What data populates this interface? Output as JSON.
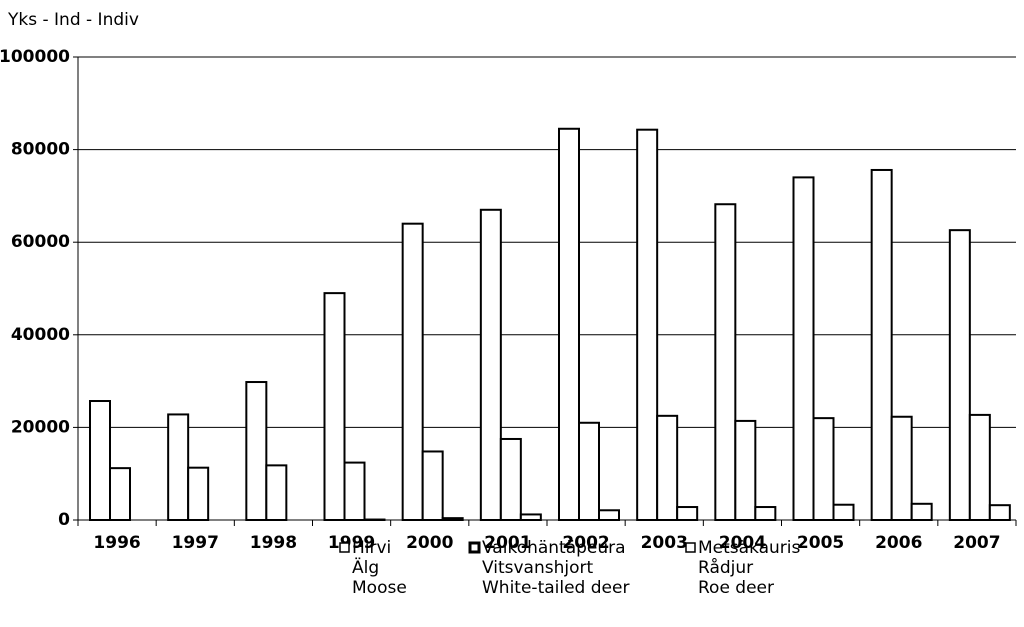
{
  "chart_data": {
    "type": "bar",
    "axis_label": "Yks - Ind - Indiv",
    "categories": [
      "1996",
      "1997",
      "1998",
      "1999",
      "2000",
      "2001",
      "2002",
      "2003",
      "2004",
      "2005",
      "2006",
      "2007"
    ],
    "series": [
      {
        "name": [
          "Hirvi",
          "Älg",
          "Moose"
        ],
        "color": "#ffffff",
        "values": [
          25700,
          22800,
          29800,
          49000,
          64000,
          67000,
          84500,
          84300,
          68200,
          74000,
          75600,
          62600
        ]
      },
      {
        "name": [
          "Valkohäntäpeura",
          "Vitsvanshjort",
          "White-tailed deer"
        ],
        "color": "#ffffff",
        "values": [
          11200,
          11300,
          11800,
          12400,
          14800,
          17500,
          21000,
          22500,
          21400,
          22000,
          22300,
          22700
        ]
      },
      {
        "name": [
          "Metsäkauris",
          "Rådjur",
          "Roe deer"
        ],
        "color": "#ffffff",
        "values": [
          0,
          0,
          0,
          100,
          400,
          1200,
          2100,
          2800,
          2800,
          3300,
          3500,
          3200
        ]
      }
    ],
    "ylim": [
      0,
      100000
    ],
    "yticks": [
      0,
      20000,
      40000,
      60000,
      80000,
      100000
    ],
    "grid": true
  }
}
